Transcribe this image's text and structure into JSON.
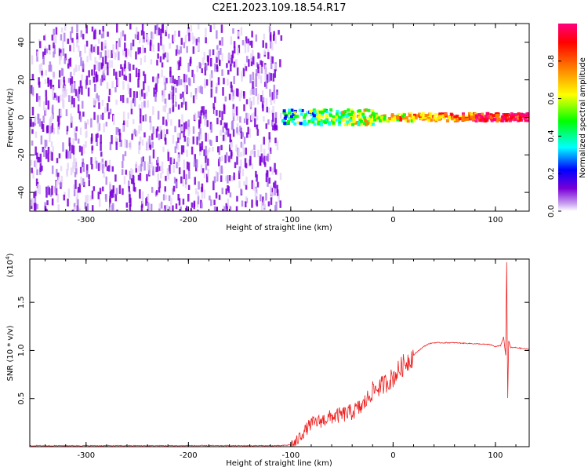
{
  "title": "C2E1.2023.109.18.54.R17",
  "chart_data": [
    {
      "type": "heatmap",
      "xlabel": "Height of straight line (km)",
      "ylabel": "Frequency (Hz)",
      "xlim": [
        -355,
        133
      ],
      "ylim": [
        -50,
        50
      ],
      "x_ticks": [
        "-300",
        "-200",
        "-100",
        "0",
        "100"
      ],
      "y_ticks": [
        "-40",
        "-20",
        "0",
        "20",
        "40"
      ],
      "colorbar": {
        "label": "Normalized spectral amplitude",
        "range": [
          0,
          1
        ],
        "ticks": [
          "0.0",
          "0.2",
          "0.4",
          "0.6",
          "0.8"
        ],
        "colors": [
          "#ffffff",
          "#7a00d8",
          "#0000ff",
          "#00ffff",
          "#00ff00",
          "#ffff00",
          "#ff8000",
          "#ff0000",
          "#ff0080"
        ]
      },
      "description_regions": [
        {
          "x_range": [
            -355,
            -110
          ],
          "freq_range": [
            -50,
            50
          ],
          "amplitude": "low noise (~0.1)"
        },
        {
          "x_range": [
            -110,
            133
          ],
          "center_freq": 0,
          "amplitude": "narrow band rising to ~0.9"
        }
      ]
    },
    {
      "type": "line",
      "xlabel": "Height of straight line (km)",
      "ylabel": "SNR (10 * v/v)",
      "y_multiplier_label": "(x10",
      "y_multiplier_exp": "4",
      "xlim": [
        -355,
        133
      ],
      "ylim": [
        0,
        1.95
      ],
      "x_ticks": [
        "-300",
        "-200",
        "-100",
        "0",
        "100"
      ],
      "y_ticks": [
        "0.5",
        "1.0",
        "1.5"
      ],
      "series": [
        {
          "color": "#ee2222",
          "x": [
            -355,
            -300,
            -250,
            -200,
            -150,
            -110,
            -100,
            -95,
            -90,
            -85,
            -80,
            -70,
            -60,
            -50,
            -40,
            -30,
            -20,
            -10,
            0,
            10,
            20,
            25,
            30,
            35,
            40,
            60,
            80,
            95,
            100,
            105,
            108,
            110,
            111,
            112,
            113,
            115,
            120,
            133
          ],
          "y": [
            0.01,
            0.01,
            0.01,
            0.01,
            0.01,
            0.01,
            0.02,
            0.04,
            0.12,
            0.18,
            0.24,
            0.27,
            0.31,
            0.33,
            0.36,
            0.42,
            0.58,
            0.64,
            0.72,
            0.85,
            0.95,
            1.0,
            1.04,
            1.07,
            1.08,
            1.08,
            1.07,
            1.06,
            1.04,
            1.05,
            1.14,
            0.95,
            1.92,
            0.5,
            1.1,
            1.03,
            1.03,
            1.01
          ]
        }
      ]
    }
  ]
}
